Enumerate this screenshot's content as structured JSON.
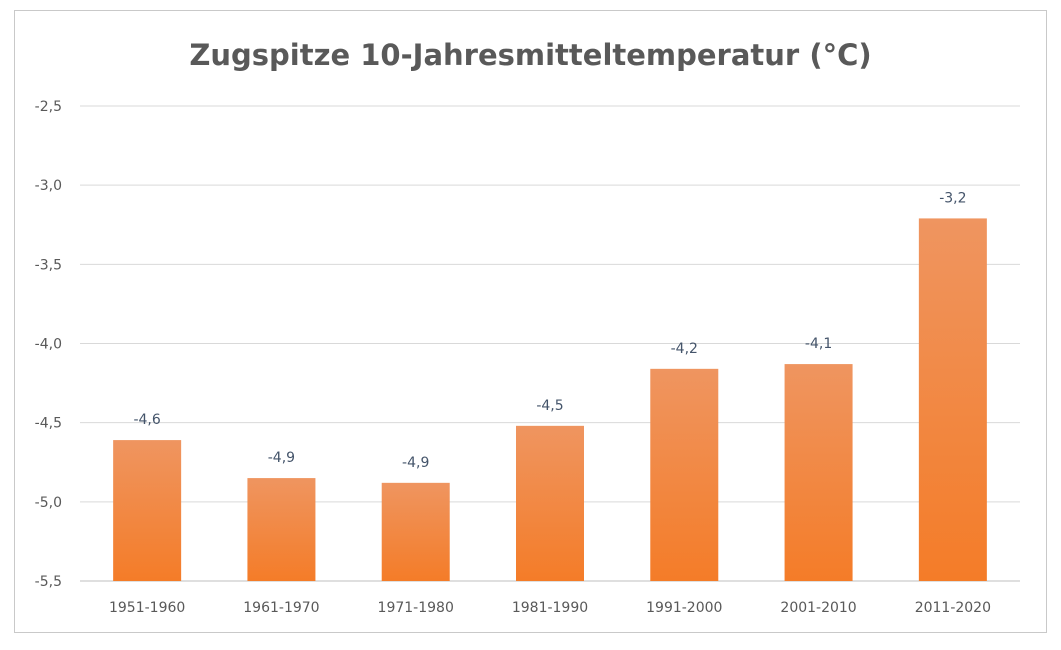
{
  "chart_data": {
    "type": "bar",
    "title": "Zugspitze 10-Jahresmitteltemperatur (°C)",
    "xlabel": "",
    "ylabel": "",
    "categories": [
      "1951-1960",
      "1961-1970",
      "1971-1980",
      "1981-1990",
      "1991-2000",
      "2001-2010",
      "2011-2020"
    ],
    "values": [
      -4.61,
      -4.85,
      -4.88,
      -4.52,
      -4.16,
      -4.13,
      -3.21
    ],
    "data_labels": [
      "-4,6",
      "-4,9",
      "-4,9",
      "-4,5",
      "-4,2",
      "-4,1",
      "-3,2"
    ],
    "ylim": [
      -5.5,
      -2.5
    ],
    "yticks": [
      -2.5,
      -3.0,
      -3.5,
      -4.0,
      -4.5,
      -5.0,
      -5.5
    ],
    "ytick_labels": [
      "-2,5",
      "-3,0",
      "-3,5",
      "-4,0",
      "-4,5",
      "-5,0",
      "-5,5"
    ],
    "grid": true,
    "legend": "none",
    "colors": {
      "bar_top": "#ef9560",
      "bar_bottom": "#f47c28",
      "grid": "#d9d9d9",
      "text": "#595959",
      "label": "#44546a"
    }
  }
}
